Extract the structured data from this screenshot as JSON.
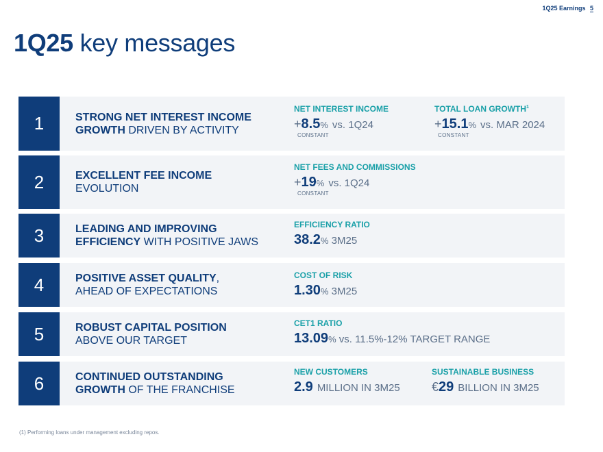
{
  "header": {
    "label": "1Q25 Earnings",
    "page": "5"
  },
  "title": {
    "strong": "1Q25",
    "rest": " key messages"
  },
  "rows": [
    {
      "number": "1",
      "msg_bold_1": "STRONG NET INTEREST INCOME",
      "msg_bold_2": "GROWTH",
      "msg_rest_2": " DRIVEN BY ACTIVITY",
      "kpis": [
        {
          "head": "NET INTEREST INCOME",
          "sign": "+",
          "value": "8.5",
          "unit": "%",
          "compare": "vs. 1Q24",
          "sub": "CONSTANT"
        },
        {
          "head": "TOTAL LOAN GROWTH",
          "sup": "1",
          "sign": "+",
          "value": "15.1",
          "unit": "%",
          "compare": "vs. MAR 2024",
          "sub": "CONSTANT"
        }
      ]
    },
    {
      "number": "2",
      "msg_bold_1": "EXCELLENT FEE INCOME",
      "msg_rest_2": "EVOLUTION",
      "kpis": [
        {
          "head": "NET FEES AND COMMISSIONS",
          "sign": "+",
          "value": "19",
          "unit": "%",
          "compare": "vs. 1Q24",
          "sub": "CONSTANT"
        }
      ]
    },
    {
      "number": "3",
      "msg_bold_1": "LEADING AND IMPROVING",
      "msg_bold_2": "EFFICIENCY",
      "msg_rest_2": " WITH POSITIVE JAWS",
      "kpis": [
        {
          "head": "EFFICIENCY RATIO",
          "value": "38.2",
          "unit": "%",
          "compare": " 3M25"
        }
      ]
    },
    {
      "number": "4",
      "msg_bold_1": "POSITIVE ASSET QUALITY",
      "msg_rest_1": ",",
      "msg_rest_2": "AHEAD OF EXPECTATIONS",
      "kpis": [
        {
          "head": "COST OF RISK",
          "value": "1.30",
          "unit": "%",
          "compare": " 3M25"
        }
      ]
    },
    {
      "number": "5",
      "msg_bold_1": "ROBUST CAPITAL POSITION",
      "msg_rest_2": "ABOVE OUR TARGET",
      "kpis": [
        {
          "head": "CET1 RATIO",
          "value": "13.09",
          "unit": "%",
          "compare": " vs. 11.5%-12% TARGET RANGE"
        }
      ]
    },
    {
      "number": "6",
      "msg_bold_1": "CONTINUED OUTSTANDING",
      "msg_bold_2": "GROWTH",
      "msg_rest_2": " OF THE FRANCHISE",
      "kpis": [
        {
          "head": "NEW CUSTOMERS",
          "value": "2.9",
          "compare": "MILLION IN 3M25"
        },
        {
          "head": "SUSTAINABLE BUSINESS",
          "currency": "€",
          "value": "29",
          "compare": "BILLION IN 3M25"
        }
      ]
    }
  ],
  "footnote": "(1) Performing loans under management excluding repos."
}
